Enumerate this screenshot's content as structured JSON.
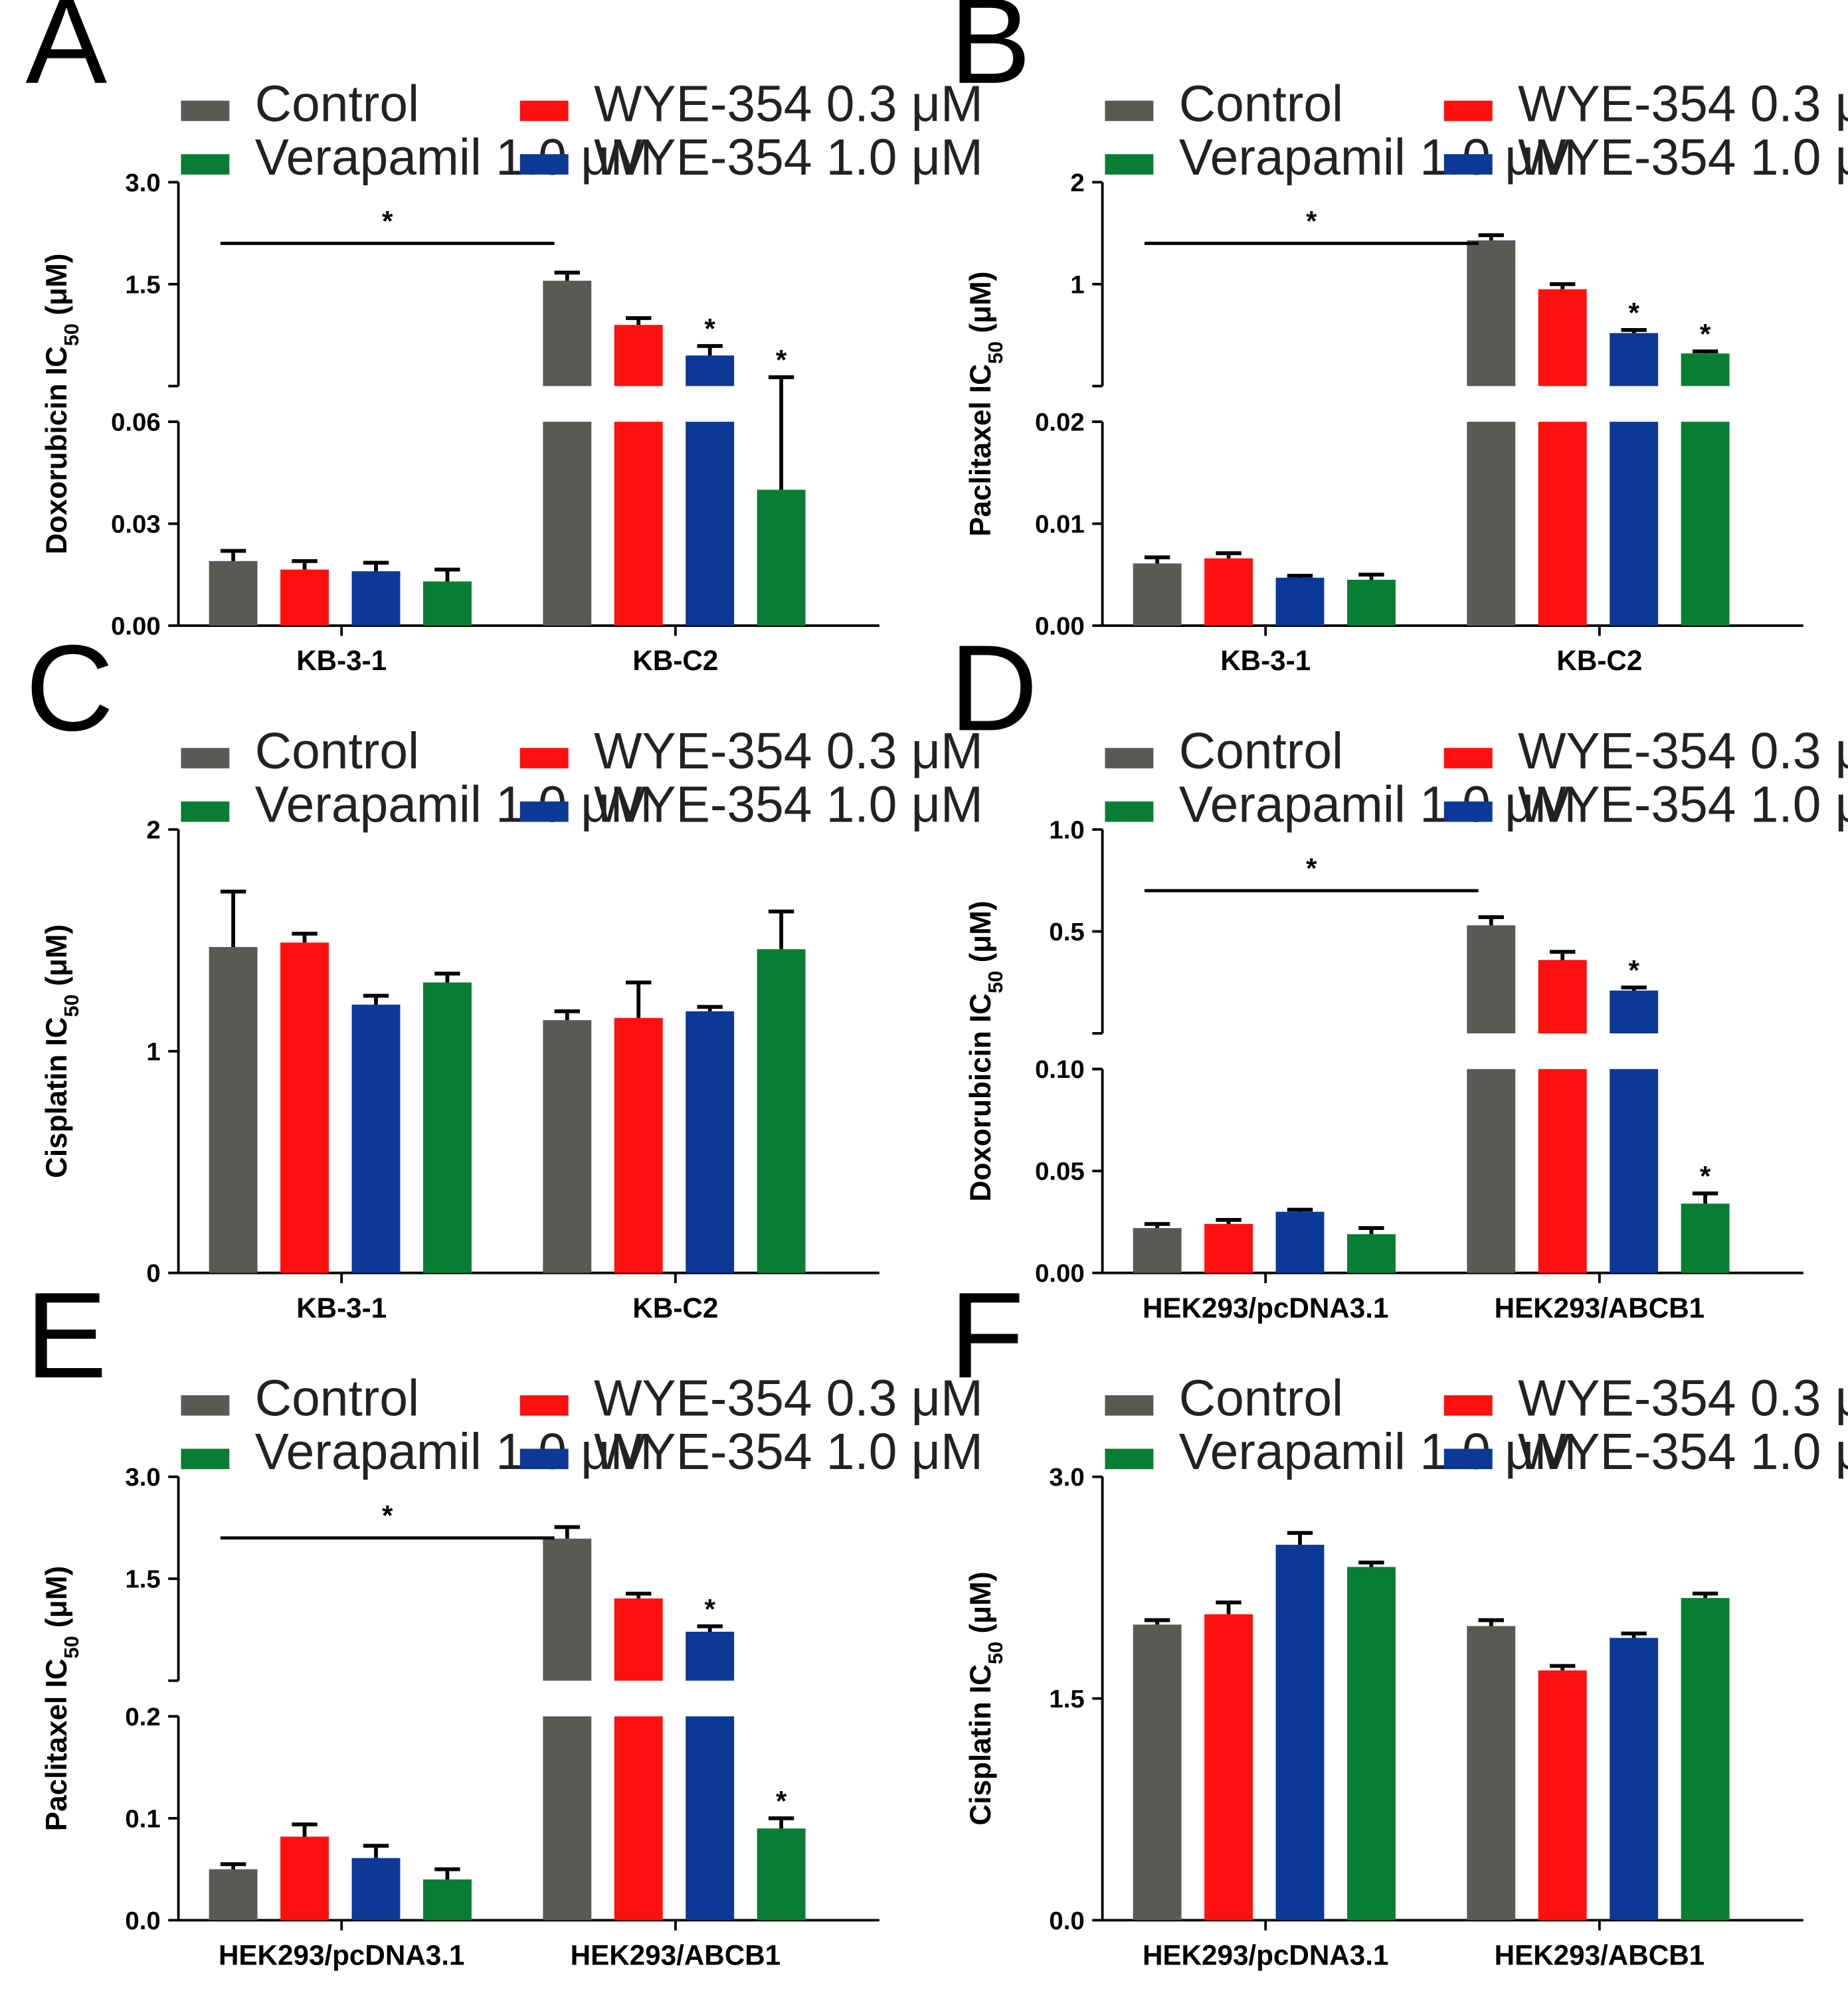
{
  "colors": {
    "Control": "#575a55",
    "WYE-354 0.3 μM": "#fe1010",
    "Verapamil 1.0 μM": "#0a7d35",
    "WYE-354 1.0 μM": "#0c3897"
  },
  "legend": {
    "control": "Control",
    "wye03": "WYE-354 0.3 μM",
    "verapamil": "Verapamil 1.0 μM",
    "wye10": "WYE-354 1.0 μM"
  },
  "chart_data": [
    {
      "panel": "A",
      "type": "bar",
      "ylabel_main": "Doxorubicin IC",
      "ylabel_sub": "50",
      "ylabel_unit": " (μM)",
      "categories": [
        "KB-3-1",
        "KB-C2"
      ],
      "series": [
        {
          "name": "Control",
          "values": [
            0.019,
            1.55
          ],
          "errors": [
            0.003,
            0.12
          ]
        },
        {
          "name": "WYE-354 0.3 μM",
          "values": [
            0.0165,
            0.9
          ],
          "errors": [
            0.0025,
            0.1
          ]
        },
        {
          "name": "WYE-354 1.0 μM",
          "values": [
            0.016,
            0.45
          ],
          "errors": [
            0.0025,
            0.14
          ]
        },
        {
          "name": "Verapamil 1.0 μM",
          "values": [
            0.013,
            0.04
          ],
          "errors": [
            0.0035,
            0.09
          ]
        }
      ],
      "broken_axis": true,
      "lower_range": [
        0,
        0.06
      ],
      "lower_ticks": [
        "0.00",
        "0.03",
        "0.06"
      ],
      "upper_range": [
        0,
        3.0
      ],
      "upper_ticks": [
        "1.5",
        "3.0"
      ],
      "significance": {
        "bracket": true,
        "bar_stars": [
          [
            1,
            2
          ],
          [
            1,
            3
          ]
        ],
        "symbol": "*"
      }
    },
    {
      "panel": "B",
      "type": "bar",
      "ylabel_main": "Paclitaxel IC",
      "ylabel_sub": "50",
      "ylabel_unit": " (μM)",
      "categories": [
        "KB-3-1",
        "KB-C2"
      ],
      "series": [
        {
          "name": "Control",
          "values": [
            0.0061,
            1.43
          ],
          "errors": [
            0.0006,
            0.05
          ]
        },
        {
          "name": "WYE-354 0.3 μM",
          "values": [
            0.0066,
            0.95
          ],
          "errors": [
            0.0005,
            0.05
          ]
        },
        {
          "name": "WYE-354 1.0 μM",
          "values": [
            0.0047,
            0.52
          ],
          "errors": [
            0.0002,
            0.03
          ]
        },
        {
          "name": "Verapamil 1.0 μM",
          "values": [
            0.0045,
            0.32
          ],
          "errors": [
            0.0005,
            0.02
          ]
        }
      ],
      "broken_axis": true,
      "lower_range": [
        0,
        0.02
      ],
      "lower_ticks": [
        "0.00",
        "0.01",
        "0.02"
      ],
      "upper_range": [
        0,
        2
      ],
      "upper_ticks": [
        "1",
        "2"
      ],
      "significance": {
        "bracket": true,
        "bar_stars": [
          [
            1,
            2
          ],
          [
            1,
            3
          ]
        ],
        "symbol": "*"
      }
    },
    {
      "panel": "C",
      "type": "bar",
      "ylabel_main": "Cisplatin IC",
      "ylabel_sub": "50",
      "ylabel_unit": " (μM)",
      "categories": [
        "KB-3-1",
        "KB-C2"
      ],
      "series": [
        {
          "name": "Control",
          "values": [
            1.47,
            1.14
          ],
          "errors": [
            0.25,
            0.04
          ]
        },
        {
          "name": "WYE-354 0.3 μM",
          "values": [
            1.49,
            1.15
          ],
          "errors": [
            0.04,
            0.16
          ]
        },
        {
          "name": "WYE-354 1.0 μM",
          "values": [
            1.21,
            1.18
          ],
          "errors": [
            0.04,
            0.02
          ]
        },
        {
          "name": "Verapamil 1.0 μM",
          "values": [
            1.31,
            1.46
          ],
          "errors": [
            0.04,
            0.17
          ]
        }
      ],
      "broken_axis": false,
      "range": [
        0,
        2
      ],
      "ticks": [
        "0",
        "1",
        "2"
      ],
      "significance": {
        "bracket": false,
        "bar_stars": []
      }
    },
    {
      "panel": "D",
      "type": "bar",
      "ylabel_main": "Doxorubicin IC",
      "ylabel_sub": "50",
      "ylabel_unit": " (μM)",
      "categories": [
        "HEK293/pcDNA3.1",
        "HEK293/ABCB1"
      ],
      "series": [
        {
          "name": "Control",
          "values": [
            0.022,
            0.53
          ],
          "errors": [
            0.002,
            0.04
          ]
        },
        {
          "name": "WYE-354 0.3 μM",
          "values": [
            0.024,
            0.36
          ],
          "errors": [
            0.002,
            0.04
          ]
        },
        {
          "name": "WYE-354 1.0 μM",
          "values": [
            0.03,
            0.21
          ],
          "errors": [
            0.001,
            0.015
          ]
        },
        {
          "name": "Verapamil 1.0 μM",
          "values": [
            0.019,
            0.034
          ],
          "errors": [
            0.003,
            0.005
          ]
        }
      ],
      "broken_axis": true,
      "lower_range": [
        0,
        0.1
      ],
      "lower_ticks": [
        "0.00",
        "0.05",
        "0.10"
      ],
      "upper_range": [
        0,
        1.0
      ],
      "upper_ticks": [
        "0.5",
        "1.0"
      ],
      "significance": {
        "bracket": true,
        "bar_stars": [
          [
            1,
            2
          ],
          [
            1,
            3
          ]
        ],
        "symbol": "*"
      }
    },
    {
      "panel": "E",
      "type": "bar",
      "ylabel_main": "Paclitaxel IC",
      "ylabel_sub": "50",
      "ylabel_unit": " (μM)",
      "categories": [
        "HEK293/pcDNA3.1",
        "HEK293/ABCB1"
      ],
      "series": [
        {
          "name": "Control",
          "values": [
            0.05,
            2.09
          ],
          "errors": [
            0.005,
            0.17
          ]
        },
        {
          "name": "WYE-354 0.3 μM",
          "values": [
            0.082,
            1.21
          ],
          "errors": [
            0.012,
            0.07
          ]
        },
        {
          "name": "WYE-354 1.0 μM",
          "values": [
            0.061,
            0.72
          ],
          "errors": [
            0.012,
            0.08
          ]
        },
        {
          "name": "Verapamil 1.0 μM",
          "values": [
            0.04,
            0.09
          ],
          "errors": [
            0.01,
            0.01
          ]
        }
      ],
      "broken_axis": true,
      "lower_range": [
        0,
        0.2
      ],
      "lower_ticks": [
        "0.0",
        "0.1",
        "0.2"
      ],
      "upper_range": [
        0,
        3.0
      ],
      "upper_ticks": [
        "1.5",
        "3.0"
      ],
      "significance": {
        "bracket": true,
        "bar_stars": [
          [
            1,
            2
          ],
          [
            1,
            3
          ]
        ],
        "symbol": "*"
      }
    },
    {
      "panel": "F",
      "type": "bar",
      "ylabel_main": "Cisplatin IC",
      "ylabel_sub": "50",
      "ylabel_unit": " (μM)",
      "categories": [
        "HEK293/pcDNA3.1",
        "HEK293/ABCB1"
      ],
      "series": [
        {
          "name": "Control",
          "values": [
            2.0,
            1.99
          ],
          "errors": [
            0.03,
            0.04
          ]
        },
        {
          "name": "WYE-354 0.3 μM",
          "values": [
            2.07,
            1.69
          ],
          "errors": [
            0.08,
            0.03
          ]
        },
        {
          "name": "WYE-354 1.0 μM",
          "values": [
            2.54,
            1.91
          ],
          "errors": [
            0.08,
            0.03
          ]
        },
        {
          "name": "Verapamil 1.0 μM",
          "values": [
            2.39,
            2.18
          ],
          "errors": [
            0.03,
            0.03
          ]
        }
      ],
      "broken_axis": false,
      "range": [
        0,
        3.0
      ],
      "ticks": [
        "0.0",
        "1.5",
        "3.0"
      ],
      "significance": {
        "bracket": false,
        "bar_stars": []
      }
    }
  ]
}
